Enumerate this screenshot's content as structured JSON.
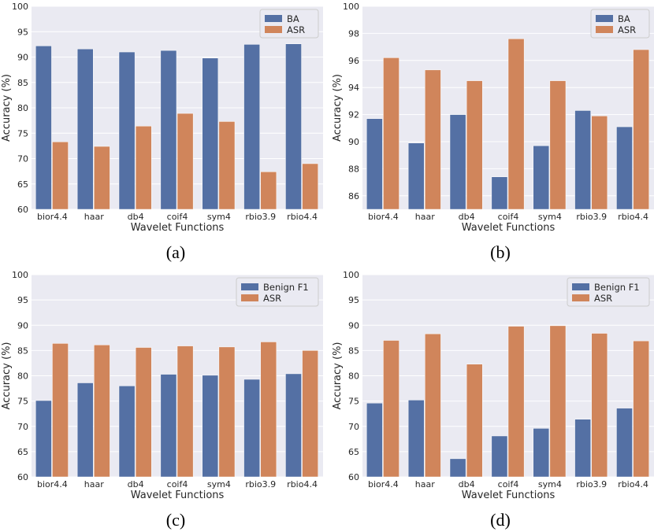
{
  "colors": {
    "series1": "#5470a4",
    "series2": "#d0855b",
    "background": "#eaeaf2",
    "grid": "#ffffff"
  },
  "chart_data": [
    {
      "type": "bar",
      "caption": "(a)",
      "categories": [
        "bior4.4",
        "haar",
        "db4",
        "coif4",
        "sym4",
        "rbio3.9",
        "rbio4.4"
      ],
      "series": [
        {
          "name": "BA",
          "values": [
            92.2,
            91.6,
            91.0,
            91.3,
            89.8,
            92.5,
            92.6
          ]
        },
        {
          "name": "ASR",
          "values": [
            73.3,
            72.4,
            76.4,
            78.9,
            77.3,
            67.4,
            69.0
          ]
        }
      ],
      "xlabel": "Wavelet Functions",
      "ylabel": "Accuracy (%)",
      "ylim": [
        60,
        100
      ],
      "yticks": [
        60,
        65,
        70,
        75,
        80,
        85,
        90,
        95,
        100
      ],
      "legend": "top-right"
    },
    {
      "type": "bar",
      "caption": "(b)",
      "categories": [
        "bior4.4",
        "haar",
        "db4",
        "coif4",
        "sym4",
        "rbio3.9",
        "rbio4.4"
      ],
      "series": [
        {
          "name": "BA",
          "values": [
            91.7,
            89.9,
            92.0,
            87.4,
            89.7,
            92.3,
            91.1
          ]
        },
        {
          "name": "ASR",
          "values": [
            96.2,
            95.3,
            94.5,
            97.6,
            94.5,
            91.9,
            96.8
          ]
        }
      ],
      "xlabel": "Wavelet Functions",
      "ylabel": "Accuracy (%)",
      "ylim": [
        85,
        100
      ],
      "yticks": [
        86,
        88,
        90,
        92,
        94,
        96,
        98,
        100
      ],
      "legend": "top-right"
    },
    {
      "type": "bar",
      "caption": "(c)",
      "categories": [
        "bior4.4",
        "haar",
        "db4",
        "coif4",
        "sym4",
        "rbio3.9",
        "rbio4.4"
      ],
      "series": [
        {
          "name": "Benign F1",
          "values": [
            75.1,
            78.6,
            78.0,
            80.3,
            80.1,
            79.3,
            80.4
          ]
        },
        {
          "name": "ASR",
          "values": [
            86.4,
            86.1,
            85.6,
            85.9,
            85.7,
            86.7,
            85.0
          ]
        }
      ],
      "xlabel": "Wavelet Functions",
      "ylabel": "Accuracy (%)",
      "ylim": [
        60,
        100
      ],
      "yticks": [
        60,
        65,
        70,
        75,
        80,
        85,
        90,
        95,
        100
      ],
      "legend": "top-right"
    },
    {
      "type": "bar",
      "caption": "(d)",
      "categories": [
        "bior4.4",
        "haar",
        "db4",
        "coif4",
        "sym4",
        "rbio3.9",
        "rbio4.4"
      ],
      "series": [
        {
          "name": "Benign F1",
          "values": [
            74.6,
            75.2,
            63.6,
            68.1,
            69.6,
            71.4,
            73.6
          ]
        },
        {
          "name": "ASR",
          "values": [
            87.0,
            88.3,
            82.3,
            89.8,
            89.9,
            88.4,
            86.9
          ]
        }
      ],
      "xlabel": "Wavelet Functions",
      "ylabel": "Accuracy (%)",
      "ylim": [
        60,
        100
      ],
      "yticks": [
        60,
        65,
        70,
        75,
        80,
        85,
        90,
        95,
        100
      ],
      "legend": "top-right"
    }
  ]
}
